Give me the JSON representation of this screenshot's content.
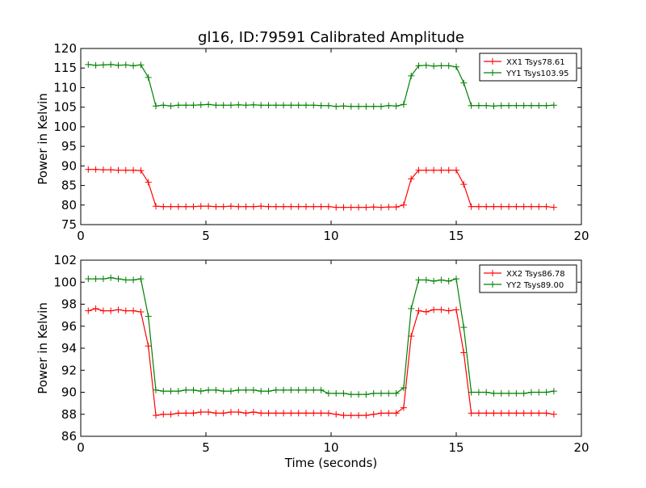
{
  "chart_data": [
    {
      "type": "line",
      "title": "gl16, ID:79591 Calibrated Amplitude",
      "xlabel": "",
      "ylabel": "Power in Kelvin",
      "xlim": [
        0,
        20
      ],
      "ylim": [
        75,
        120
      ],
      "xticks": [
        0,
        5,
        10,
        15,
        20
      ],
      "yticks": [
        75,
        80,
        85,
        90,
        95,
        100,
        105,
        110,
        115,
        120
      ],
      "legend_position": "top-right",
      "x": [
        0.3,
        0.6,
        0.9,
        1.2,
        1.5,
        1.8,
        2.1,
        2.4,
        2.7,
        3.0,
        3.3,
        3.6,
        3.9,
        4.2,
        4.5,
        4.8,
        5.1,
        5.4,
        5.7,
        6.0,
        6.3,
        6.6,
        6.9,
        7.2,
        7.5,
        7.8,
        8.1,
        8.4,
        8.7,
        9.0,
        9.3,
        9.6,
        9.9,
        10.2,
        10.5,
        10.8,
        11.1,
        11.4,
        11.7,
        12.0,
        12.3,
        12.6,
        12.9,
        13.2,
        13.5,
        13.8,
        14.1,
        14.4,
        14.7,
        15.0,
        15.3,
        15.6,
        15.9,
        16.2,
        16.5,
        16.8,
        17.1,
        17.4,
        17.7,
        18.0,
        18.3,
        18.6,
        18.9
      ],
      "series": [
        {
          "name": "XX1 Tsys78.61",
          "color": "#ff0000",
          "values": [
            89.1,
            89.1,
            89.0,
            89.0,
            88.9,
            88.9,
            88.9,
            88.8,
            85.8,
            79.7,
            79.6,
            79.6,
            79.6,
            79.6,
            79.6,
            79.7,
            79.7,
            79.6,
            79.6,
            79.7,
            79.6,
            79.6,
            79.6,
            79.7,
            79.6,
            79.6,
            79.6,
            79.6,
            79.6,
            79.6,
            79.6,
            79.6,
            79.6,
            79.4,
            79.4,
            79.4,
            79.4,
            79.4,
            79.5,
            79.4,
            79.5,
            79.5,
            80.0,
            86.7,
            88.9,
            88.9,
            88.9,
            88.9,
            88.9,
            88.9,
            85.3,
            79.6,
            79.6,
            79.6,
            79.6,
            79.6,
            79.6,
            79.6,
            79.6,
            79.6,
            79.6,
            79.6,
            79.4
          ]
        },
        {
          "name": "YY1 Tsys103.95",
          "color": "#008000",
          "values": [
            115.9,
            115.7,
            115.8,
            115.9,
            115.7,
            115.8,
            115.6,
            115.8,
            112.6,
            105.3,
            105.5,
            105.3,
            105.5,
            105.5,
            105.5,
            105.6,
            105.7,
            105.5,
            105.5,
            105.5,
            105.6,
            105.5,
            105.6,
            105.5,
            105.5,
            105.5,
            105.5,
            105.5,
            105.5,
            105.5,
            105.5,
            105.4,
            105.4,
            105.2,
            105.3,
            105.2,
            105.2,
            105.2,
            105.2,
            105.2,
            105.4,
            105.3,
            105.7,
            113.0,
            115.6,
            115.7,
            115.5,
            115.6,
            115.6,
            115.3,
            111.2,
            105.4,
            105.4,
            105.4,
            105.3,
            105.4,
            105.4,
            105.4,
            105.4,
            105.4,
            105.4,
            105.4,
            105.5
          ]
        }
      ]
    },
    {
      "type": "line",
      "title": "",
      "xlabel": "Time (seconds)",
      "ylabel": "Power in Kelvin",
      "xlim": [
        0,
        20
      ],
      "ylim": [
        86,
        102
      ],
      "xticks": [
        0,
        5,
        10,
        15,
        20
      ],
      "yticks": [
        86,
        88,
        90,
        92,
        94,
        96,
        98,
        100,
        102
      ],
      "legend_position": "top-right",
      "x": [
        0.3,
        0.6,
        0.9,
        1.2,
        1.5,
        1.8,
        2.1,
        2.4,
        2.7,
        3.0,
        3.3,
        3.6,
        3.9,
        4.2,
        4.5,
        4.8,
        5.1,
        5.4,
        5.7,
        6.0,
        6.3,
        6.6,
        6.9,
        7.2,
        7.5,
        7.8,
        8.1,
        8.4,
        8.7,
        9.0,
        9.3,
        9.6,
        9.9,
        10.2,
        10.5,
        10.8,
        11.1,
        11.4,
        11.7,
        12.0,
        12.3,
        12.6,
        12.9,
        13.2,
        13.5,
        13.8,
        14.1,
        14.4,
        14.7,
        15.0,
        15.3,
        15.6,
        15.9,
        16.2,
        16.5,
        16.8,
        17.1,
        17.4,
        17.7,
        18.0,
        18.3,
        18.6,
        18.9
      ],
      "series": [
        {
          "name": "XX2 Tsys86.78",
          "color": "#ff0000",
          "values": [
            97.4,
            97.6,
            97.4,
            97.4,
            97.5,
            97.4,
            97.4,
            97.3,
            94.2,
            87.9,
            88.0,
            88.0,
            88.1,
            88.1,
            88.1,
            88.2,
            88.2,
            88.1,
            88.1,
            88.2,
            88.2,
            88.1,
            88.2,
            88.1,
            88.1,
            88.1,
            88.1,
            88.1,
            88.1,
            88.1,
            88.1,
            88.1,
            88.1,
            88.0,
            87.9,
            87.9,
            87.9,
            87.9,
            88.0,
            88.1,
            88.1,
            88.1,
            88.6,
            95.1,
            97.4,
            97.3,
            97.5,
            97.5,
            97.4,
            97.5,
            93.6,
            88.1,
            88.1,
            88.1,
            88.1,
            88.1,
            88.1,
            88.1,
            88.1,
            88.1,
            88.1,
            88.1,
            88.0
          ]
        },
        {
          "name": "YY2 Tsys89.00",
          "color": "#008000",
          "values": [
            100.3,
            100.3,
            100.3,
            100.4,
            100.3,
            100.2,
            100.2,
            100.3,
            96.9,
            90.2,
            90.1,
            90.1,
            90.1,
            90.2,
            90.2,
            90.1,
            90.2,
            90.2,
            90.1,
            90.1,
            90.2,
            90.2,
            90.2,
            90.1,
            90.1,
            90.2,
            90.2,
            90.2,
            90.2,
            90.2,
            90.2,
            90.2,
            89.9,
            89.9,
            89.9,
            89.8,
            89.8,
            89.8,
            89.9,
            89.9,
            89.9,
            89.9,
            90.4,
            97.6,
            100.2,
            100.2,
            100.1,
            100.2,
            100.1,
            100.3,
            95.9,
            90.0,
            90.0,
            90.0,
            89.9,
            89.9,
            89.9,
            89.9,
            89.9,
            90.0,
            90.0,
            90.0,
            90.1
          ]
        }
      ]
    }
  ]
}
